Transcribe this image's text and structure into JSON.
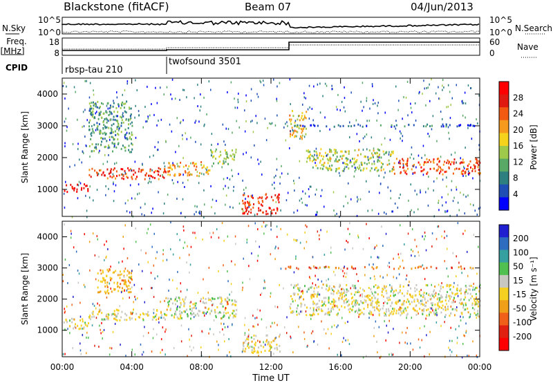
{
  "header": {
    "station": "Blackstone (fitACF)",
    "beam": "Beam 07",
    "date": "04/Jun/2013"
  },
  "noise_panel": {
    "left_label": "N.Sky",
    "right_label": "N.Search",
    "left_ticks": [
      "10^5",
      "10^0"
    ],
    "right_ticks": [
      "10^5",
      "10^0"
    ]
  },
  "freq_panel": {
    "left_label_line1": "Freq.",
    "left_label_line2": "[MHz]",
    "left_ticks": [
      "18",
      "8"
    ],
    "right_label": "Nave",
    "right_ticks": [
      "60",
      "0"
    ]
  },
  "cpid_panel": {
    "label": "CPID",
    "segments": [
      {
        "name": "rbsp-tau 210",
        "start_hour": 0.0
      },
      {
        "name": "twofsound 3501",
        "start_hour": 6.0
      }
    ]
  },
  "x_axis": {
    "label": "Time UT",
    "ticks": [
      "00:00",
      "04:00",
      "08:00",
      "12:00",
      "16:00",
      "20:00",
      "00:00"
    ]
  },
  "colors": {
    "power_scale": [
      "#0000ff",
      "#1f4fb4",
      "#2d7f80",
      "#58a866",
      "#9fc94a",
      "#f5d31c",
      "#f59a1c",
      "#f25a12",
      "#e01a10",
      "#ff0000"
    ],
    "velocity_scale": [
      "#2020d0",
      "#2e6cc0",
      "#36a0a0",
      "#50c050",
      "#c8c8c0",
      "#f5d020",
      "#f0a018",
      "#f06018",
      "#e02010",
      "#ff0000"
    ]
  },
  "chart_data": [
    {
      "type": "heatmap",
      "name": "power",
      "ylabel": "Slant Range [km]",
      "xlabel": "Time UT",
      "ylim": [
        150,
        4500
      ],
      "xlim_hours": [
        0,
        24
      ],
      "y_ticks": [
        1000,
        2000,
        3000,
        4000
      ],
      "colorbar_label": "Power [dB]",
      "colorbar_ticks": [
        "4",
        "8",
        "12",
        "16",
        "20",
        "24",
        "28"
      ],
      "colorbar_range": [
        0,
        32
      ],
      "bands": [
        {
          "t0": 0.0,
          "t1": 1.5,
          "r0": 950,
          "r1": 1200,
          "level": 29
        },
        {
          "t0": 1.5,
          "t1": 6.0,
          "r0": 1350,
          "r1": 1700,
          "level": 26
        },
        {
          "t0": 6.0,
          "t1": 8.5,
          "r0": 1450,
          "r1": 1900,
          "level": 20
        },
        {
          "t0": 8.5,
          "t1": 10.0,
          "r0": 1800,
          "r1": 2300,
          "level": 14
        },
        {
          "t0": 10.3,
          "t1": 12.5,
          "r0": 250,
          "r1": 900,
          "level": 27
        },
        {
          "t0": 13.0,
          "t1": 14.0,
          "r0": 2600,
          "r1": 3500,
          "level": 18
        },
        {
          "t0": 14.0,
          "t1": 19.0,
          "r0": 1600,
          "r1": 2300,
          "level": 15
        },
        {
          "t0": 19.0,
          "t1": 24.0,
          "r0": 1500,
          "r1": 2000,
          "level": 25
        },
        {
          "t0": 1.5,
          "t1": 4.0,
          "r0": 2200,
          "r1": 3800,
          "level": 10
        },
        {
          "t0": 12.8,
          "t1": 24.0,
          "r0": 3000,
          "r1": 3080,
          "level": 6
        }
      ]
    },
    {
      "type": "heatmap",
      "name": "velocity",
      "ylabel": "Slant Range [km]",
      "xlabel": "Time UT",
      "ylim": [
        150,
        4500
      ],
      "xlim_hours": [
        0,
        24
      ],
      "y_ticks": [
        1000,
        2000,
        3000,
        4000
      ],
      "colorbar_label": "Velocity [m s⁻¹]",
      "colorbar_ticks": [
        "200",
        "100",
        "50",
        "15",
        "-15",
        "-50",
        "-100",
        "-200"
      ],
      "colorbar_range": [
        -250,
        250
      ],
      "bands": [
        {
          "t0": 0.0,
          "t1": 1.5,
          "r0": 1050,
          "r1": 1400,
          "level": 0
        },
        {
          "t0": 1.5,
          "t1": 6.0,
          "r0": 1350,
          "r1": 1700,
          "level": 0
        },
        {
          "t0": 2.0,
          "t1": 4.0,
          "r0": 2200,
          "r1": 3000,
          "level": -60
        },
        {
          "t0": 6.0,
          "t1": 10.0,
          "r0": 1400,
          "r1": 2100,
          "level": 30
        },
        {
          "t0": 10.3,
          "t1": 12.5,
          "r0": 300,
          "r1": 900,
          "level": 0
        },
        {
          "t0": 13.0,
          "t1": 24.0,
          "r0": 1500,
          "r1": 2500,
          "level": 5
        },
        {
          "t0": 12.8,
          "t1": 24.0,
          "r0": 3000,
          "r1": 3080,
          "level": -120
        }
      ]
    }
  ]
}
